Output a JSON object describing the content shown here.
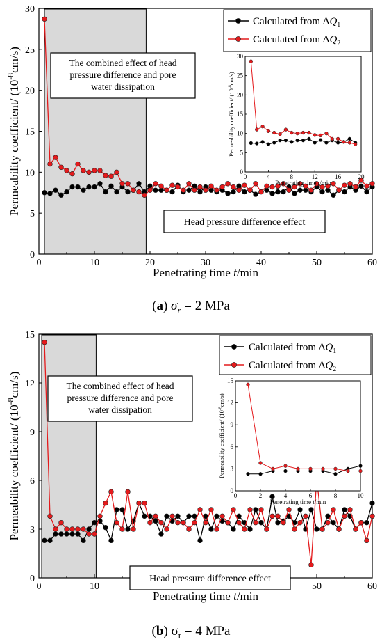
{
  "chart_data": [
    {
      "type": "line",
      "xlabel": "Penetrating time t/min",
      "ylabel": "Permeability coefficient/ (10^-8 cm/s)",
      "xlim": [
        0,
        60
      ],
      "ylim": [
        0,
        30
      ],
      "xticks": [
        0,
        10,
        20,
        30,
        40,
        50,
        60
      ],
      "yticks": [
        0,
        5,
        10,
        15,
        20,
        25,
        30
      ],
      "legend_position": "top-right",
      "shaded_region": {
        "x_range": [
          1,
          19.3
        ],
        "color": "#d9d9d9"
      },
      "annotation_combined": "The combined effect of head pressure difference and pore water dissipation",
      "annotation_combined_lines": [
        "The combined effect of head",
        "pressure difference and pore",
        "water dissipation"
      ],
      "annotation_head": "Head pressure difference effect",
      "caption": {
        "letter": "a",
        "text": "σr = 2 MPa",
        "symbol": "σ",
        "subscript": "r",
        "rest": " = 2 MPa"
      },
      "series": [
        {
          "name": "Calculated from ΔQ1",
          "label_prefix": "Calculated from Δ",
          "label_var": "Q",
          "label_sub": "1",
          "color": "#000000",
          "x": [
            1,
            2,
            3,
            4,
            5,
            6,
            7,
            8,
            9,
            10,
            11,
            12,
            13,
            14,
            15,
            16,
            17,
            18,
            19,
            20,
            21,
            22,
            23,
            24,
            25,
            26,
            27,
            28,
            29,
            30,
            31,
            32,
            33,
            34,
            35,
            36,
            37,
            38,
            39,
            40,
            41,
            42,
            43,
            44,
            45,
            46,
            47,
            48,
            49,
            50,
            51,
            52,
            53,
            54,
            55,
            56,
            57,
            58,
            59,
            60
          ],
          "values": [
            7.5,
            7.4,
            7.8,
            7.2,
            7.6,
            8.2,
            8.2,
            7.8,
            8.2,
            8.2,
            8.6,
            7.6,
            8.3,
            7.6,
            8.2,
            7.6,
            7.8,
            8.6,
            7.6,
            8.3,
            7.8,
            7.8,
            7.8,
            7.6,
            8.4,
            7.6,
            7.8,
            8.3,
            7.6,
            8.2,
            7.8,
            7.6,
            7.8,
            7.4,
            7.6,
            8.3,
            7.6,
            7.8,
            7.3,
            7.6,
            7.8,
            7.4,
            7.6,
            7.6,
            8.2,
            7.4,
            7.8,
            7.8,
            7.6,
            8.2,
            7.6,
            7.8,
            7.2,
            7.8,
            7.6,
            8.2,
            7.8,
            8.3,
            7.6,
            8.2
          ]
        },
        {
          "name": "Calculated from ΔQ2",
          "label_prefix": "Calculated from Δ",
          "label_var": "Q",
          "label_sub": "2",
          "color": "#e41a1c",
          "x": [
            1,
            2,
            3,
            4,
            5,
            6,
            7,
            8,
            9,
            10,
            11,
            12,
            13,
            14,
            15,
            16,
            17,
            18,
            19,
            20,
            21,
            22,
            23,
            24,
            25,
            26,
            27,
            28,
            29,
            30,
            31,
            32,
            33,
            34,
            35,
            36,
            37,
            38,
            39,
            40,
            41,
            42,
            43,
            44,
            45,
            46,
            47,
            48,
            49,
            50,
            51,
            52,
            53,
            54,
            55,
            56,
            57,
            58,
            59,
            60
          ],
          "values": [
            28.7,
            11.0,
            11.8,
            10.6,
            10.2,
            9.8,
            11.0,
            10.2,
            10.0,
            10.2,
            10.2,
            9.6,
            9.5,
            10.0,
            8.6,
            8.6,
            7.8,
            7.6,
            7.2,
            7.8,
            8.6,
            8.3,
            7.8,
            8.4,
            8.2,
            7.8,
            8.6,
            7.8,
            8.2,
            7.8,
            8.3,
            7.8,
            8.2,
            8.6,
            8.2,
            7.8,
            8.4,
            7.8,
            8.6,
            7.6,
            8.3,
            8.2,
            8.3,
            8.6,
            7.8,
            8.2,
            8.6,
            8.3,
            7.8,
            8.6,
            8.2,
            8.3,
            8.6,
            7.8,
            8.4,
            8.6,
            8.2,
            9.0,
            8.3,
            8.6
          ]
        }
      ],
      "inset": {
        "xlabel": "Penetrating time t/min",
        "ylabel": "Permeability coefficient/ (10^-8 cm/s)",
        "xlim": [
          0,
          20
        ],
        "ylim": [
          0,
          30
        ],
        "xticks": [
          0,
          4,
          8,
          12,
          16,
          20
        ],
        "yticks": [
          0,
          5,
          10,
          15,
          20,
          25,
          30
        ],
        "x_range_shown": [
          1,
          19
        ]
      }
    },
    {
      "type": "line",
      "xlabel": "Penetrating time t/min",
      "ylabel": "Permeability coefficient/ (10^-8 cm/s)",
      "xlim": [
        0,
        60
      ],
      "ylim": [
        0,
        15
      ],
      "xticks": [
        0,
        10,
        20,
        30,
        40,
        50,
        60
      ],
      "yticks": [
        0,
        3,
        6,
        9,
        12,
        15
      ],
      "legend_position": "top-right",
      "shaded_region": {
        "x_range": [
          0.5,
          10.3
        ],
        "color": "#d9d9d9"
      },
      "annotation_combined": "The combined effect of head pressure difference and pore water dissipation",
      "annotation_combined_lines": [
        "The combined effect of head",
        "pressure difference and pore",
        "water dissipation"
      ],
      "annotation_head": "Head pressure difference effect",
      "caption": {
        "letter": "b",
        "text": "σr = 4 MPa",
        "symbol": "σ",
        "subscript": "r",
        "rest": " = 4 MPa"
      },
      "series": [
        {
          "name": "Calculated from ΔQ1",
          "label_prefix": "Calculated from Δ",
          "label_var": "Q",
          "label_sub": "1",
          "color": "#000000",
          "x": [
            1,
            2,
            3,
            4,
            5,
            6,
            7,
            8,
            9,
            10,
            11,
            12,
            13,
            14,
            15,
            16,
            17,
            18,
            19,
            20,
            21,
            22,
            23,
            24,
            25,
            26,
            27,
            28,
            29,
            30,
            31,
            32,
            33,
            34,
            35,
            36,
            37,
            38,
            39,
            40,
            41,
            42,
            43,
            44,
            45,
            46,
            47,
            48,
            49,
            50,
            51,
            52,
            53,
            54,
            55,
            56,
            57,
            58,
            59,
            60
          ],
          "values": [
            2.3,
            2.3,
            2.7,
            2.7,
            2.7,
            2.7,
            2.7,
            2.3,
            3.0,
            3.4,
            3.5,
            3.1,
            2.3,
            4.2,
            4.2,
            3.0,
            3.5,
            4.6,
            3.8,
            3.8,
            3.5,
            2.7,
            3.8,
            3.5,
            3.8,
            3.4,
            3.8,
            3.8,
            2.3,
            3.8,
            3.0,
            3.8,
            3.5,
            3.4,
            3.0,
            3.8,
            3.4,
            3.0,
            4.2,
            3.4,
            3.0,
            5.0,
            3.4,
            3.5,
            3.8,
            3.4,
            4.2,
            3.0,
            4.2,
            3.0,
            3.0,
            3.8,
            3.4,
            3.0,
            4.2,
            3.8,
            3.0,
            3.4,
            3.4,
            4.6
          ]
        },
        {
          "name": "Calculated from ΔQ2",
          "label_prefix": "Calculated from Δ",
          "label_var": "Q",
          "label_sub": "2",
          "color": "#e41a1c",
          "x": [
            1,
            2,
            3,
            4,
            5,
            6,
            7,
            8,
            9,
            10,
            11,
            12,
            13,
            14,
            15,
            16,
            17,
            18,
            19,
            20,
            21,
            22,
            23,
            24,
            25,
            26,
            27,
            28,
            29,
            30,
            31,
            32,
            33,
            34,
            35,
            36,
            37,
            38,
            39,
            40,
            41,
            42,
            43,
            44,
            45,
            46,
            47,
            48,
            49,
            50,
            51,
            52,
            53,
            54,
            55,
            56,
            57,
            58,
            59,
            60
          ],
          "values": [
            14.5,
            3.8,
            3.0,
            3.4,
            3.0,
            3.0,
            3.0,
            3.0,
            2.7,
            2.7,
            3.8,
            4.6,
            5.3,
            3.4,
            3.0,
            5.3,
            3.0,
            4.6,
            4.6,
            3.4,
            3.8,
            3.4,
            3.0,
            3.8,
            3.4,
            3.4,
            3.0,
            3.4,
            4.2,
            3.4,
            4.2,
            3.0,
            3.8,
            3.4,
            4.2,
            3.4,
            3.0,
            4.2,
            3.4,
            4.2,
            3.0,
            3.8,
            3.8,
            3.4,
            4.2,
            3.0,
            3.4,
            3.8,
            0.8,
            6.1,
            3.0,
            3.4,
            4.2,
            3.0,
            3.8,
            4.2,
            3.0,
            3.4,
            2.3,
            3.8
          ]
        }
      ],
      "inset": {
        "xlabel": "Penetrating time t/min",
        "ylabel": "Permeability coefficient/ (10^-8 cm/s)",
        "xlim": [
          0,
          10
        ],
        "ylim": [
          0,
          15
        ],
        "xticks": [
          0,
          2,
          4,
          6,
          8,
          10
        ],
        "yticks": [
          0,
          3,
          6,
          9,
          12,
          15
        ],
        "x_range_shown": [
          1,
          10
        ]
      }
    }
  ]
}
